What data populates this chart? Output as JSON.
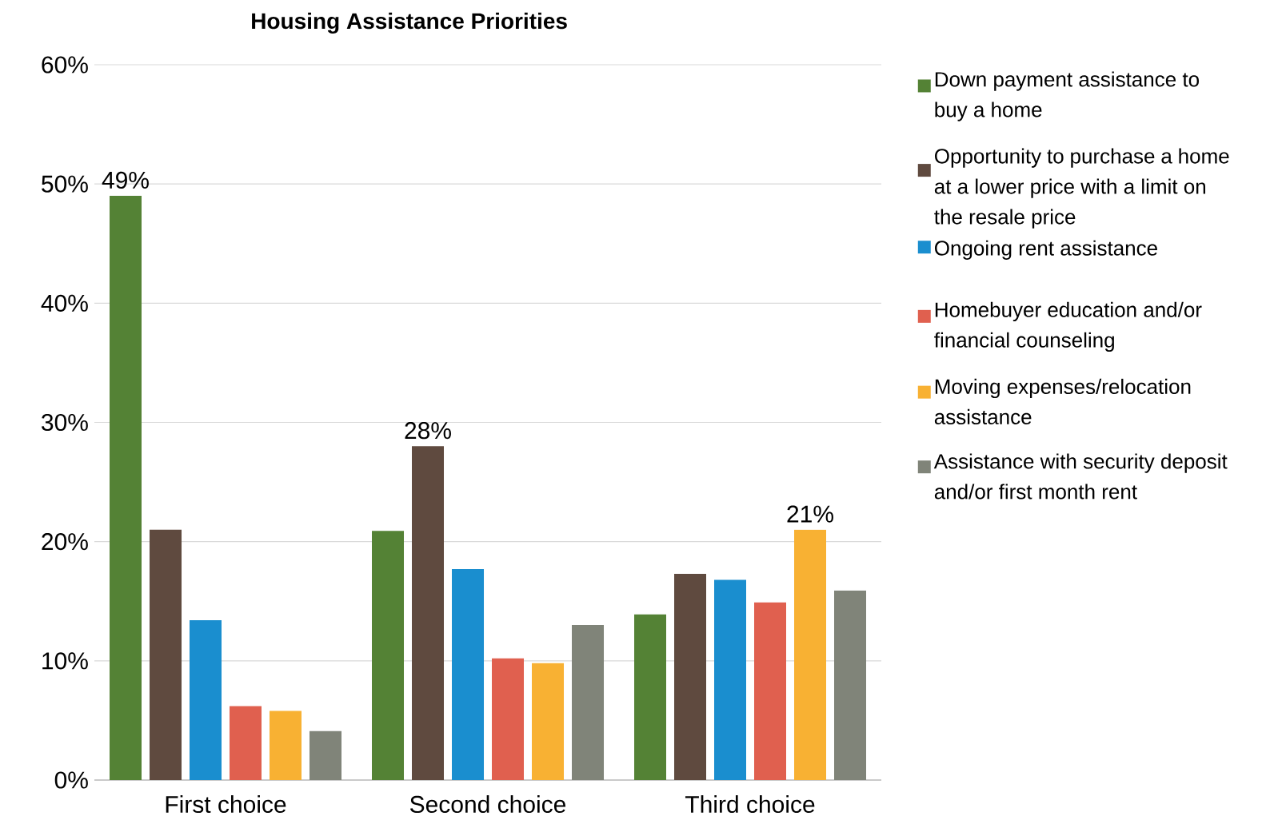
{
  "chart_data": {
    "type": "bar",
    "title": "Housing Assistance Priorities",
    "categories": [
      "First choice",
      "Second choice",
      "Third choice"
    ],
    "series": [
      {
        "name": "Down payment assistance to buy a home",
        "color": "#548235",
        "values": [
          49,
          20.9,
          13.9
        ],
        "value_labels": [
          "49%",
          null,
          null
        ]
      },
      {
        "name": "Opportunity to purchase a home at a lower price with a limit on the resale price",
        "color": "#5f4a3f",
        "values": [
          21.0,
          28,
          17.3
        ],
        "value_labels": [
          null,
          "28%",
          null
        ]
      },
      {
        "name": "Ongoing rent assistance",
        "color": "#1a8ecf",
        "values": [
          13.4,
          17.7,
          16.8
        ]
      },
      {
        "name": "Homebuyer education and/or financial counseling",
        "color": "#e0604f",
        "values": [
          6.2,
          10.2,
          14.9
        ]
      },
      {
        "name": "Moving expenses/relocation assistance",
        "color": "#f8b133",
        "values": [
          5.8,
          9.8,
          21
        ],
        "value_labels": [
          null,
          null,
          "21%"
        ]
      },
      {
        "name": "Assistance with security deposit and/or first month rent",
        "color": "#808479",
        "values": [
          4.1,
          13.0,
          15.9
        ]
      }
    ],
    "ylim": [
      0,
      60
    ],
    "yticks": [
      {
        "value": 0,
        "label": "0%"
      },
      {
        "value": 10,
        "label": "10%"
      },
      {
        "value": 20,
        "label": "20%"
      },
      {
        "value": 30,
        "label": "30%"
      },
      {
        "value": 40,
        "label": "40%"
      },
      {
        "value": 50,
        "label": "50%"
      },
      {
        "value": 60,
        "label": "60%"
      }
    ],
    "grid": "y",
    "legend": "right"
  }
}
